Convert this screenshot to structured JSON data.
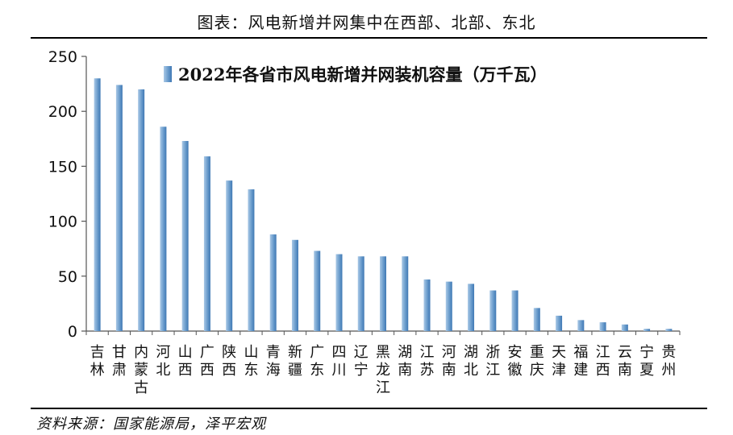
{
  "figure_title": "图表：风电新增并网集中在西部、北部、东北",
  "source": "资料来源：国家能源局，泽平宏观",
  "colors": {
    "bar_light": "#a9c8e6",
    "bar_dark": "#3f78b4",
    "axis": "#555555",
    "text": "#111111"
  },
  "chart_data": {
    "type": "bar",
    "title": "",
    "legend": "2022年各省市风电新增并网装机容量（万千瓦）",
    "categories": [
      "吉林",
      "甘肃",
      "内蒙古",
      "河北",
      "山西",
      "广西",
      "陕西",
      "山东",
      "青海",
      "新疆",
      "广东",
      "四川",
      "辽宁",
      "黑龙江",
      "湖南",
      "江苏",
      "河南",
      "湖北",
      "浙江",
      "安徽",
      "重庆",
      "天津",
      "福建",
      "江西",
      "云南",
      "宁夏",
      "贵州"
    ],
    "values": [
      230,
      224,
      220,
      186,
      173,
      159,
      137,
      129,
      88,
      83,
      73,
      70,
      68,
      68,
      68,
      47,
      45,
      43,
      37,
      37,
      21,
      14,
      10,
      8,
      6,
      2,
      2
    ],
    "ylim": [
      0,
      250
    ],
    "yticks": [
      0,
      50,
      100,
      150,
      200,
      250
    ],
    "xlabel": "",
    "ylabel": ""
  }
}
